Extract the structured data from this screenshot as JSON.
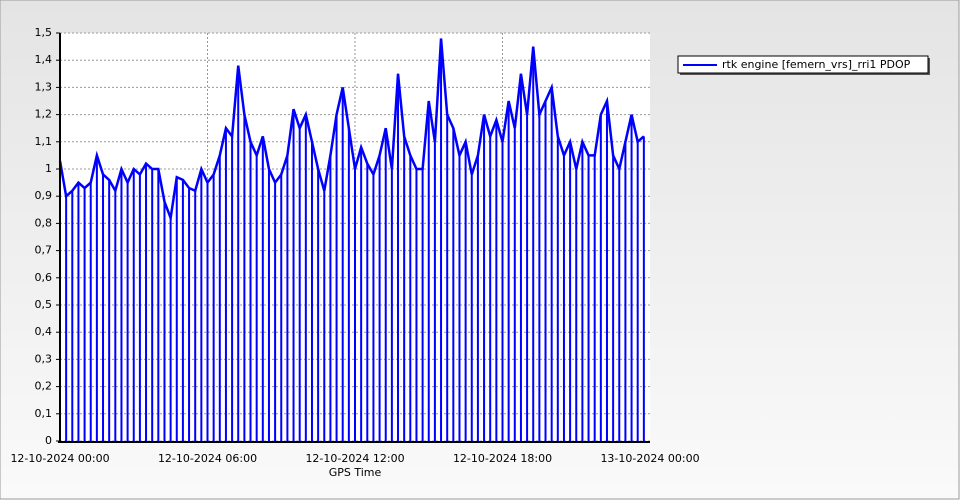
{
  "chart_data": {
    "type": "line",
    "x_label": "GPS Time",
    "grid": true,
    "legend": "upper right",
    "xlim": [
      "12-10-2024 00:00",
      "13-10-2024 00:00"
    ],
    "xticks": [
      "12-10-2024 00:00",
      "12-10-2024 06:00",
      "12-10-2024 12:00",
      "12-10-2024 18:00",
      "13-10-2024 00:00"
    ],
    "ylim": [
      0,
      1.5
    ],
    "yticks": [
      0,
      {
        "value": 0.1,
        "label": "0,1"
      },
      {
        "value": 0.2,
        "label": "0,2"
      },
      {
        "value": 0.3,
        "label": "0,3"
      },
      {
        "value": 0.4,
        "label": "0,4"
      },
      {
        "value": 0.5,
        "label": "0,5"
      },
      {
        "value": 0.6,
        "label": "0,6"
      },
      {
        "value": 0.7,
        "label": "0,7"
      },
      {
        "value": 0.8,
        "label": "0,8"
      },
      {
        "value": 0.9,
        "label": "0,9"
      },
      1,
      {
        "value": 1.1,
        "label": "1,1"
      },
      {
        "value": 1.2,
        "label": "1,2"
      },
      {
        "value": 1.3,
        "label": "1,3"
      },
      {
        "value": 1.4,
        "label": "1,4"
      },
      {
        "value": 1.5,
        "label": "1,5"
      }
    ],
    "x": [
      "12-10-2024 00:00",
      "12-10-2024 00:15",
      "12-10-2024 00:30",
      "12-10-2024 00:45",
      "12-10-2024 01:00",
      "12-10-2024 01:15",
      "12-10-2024 01:30",
      "12-10-2024 01:45",
      "12-10-2024 02:00",
      "12-10-2024 02:15",
      "12-10-2024 02:30",
      "12-10-2024 02:45",
      "12-10-2024 03:00",
      "12-10-2024 03:15",
      "12-10-2024 03:30",
      "12-10-2024 03:45",
      "12-10-2024 04:00",
      "12-10-2024 04:15",
      "12-10-2024 04:30",
      "12-10-2024 04:45",
      "12-10-2024 05:00",
      "12-10-2024 05:15",
      "12-10-2024 05:30",
      "12-10-2024 05:45",
      "12-10-2024 06:00",
      "12-10-2024 06:15",
      "12-10-2024 06:30",
      "12-10-2024 06:45",
      "12-10-2024 07:00",
      "12-10-2024 07:15",
      "12-10-2024 07:30",
      "12-10-2024 07:45",
      "12-10-2024 08:00",
      "12-10-2024 08:15",
      "12-10-2024 08:30",
      "12-10-2024 08:45",
      "12-10-2024 09:00",
      "12-10-2024 09:15",
      "12-10-2024 09:30",
      "12-10-2024 09:45",
      "12-10-2024 10:00",
      "12-10-2024 10:15",
      "12-10-2024 10:30",
      "12-10-2024 10:45",
      "12-10-2024 11:00",
      "12-10-2024 11:15",
      "12-10-2024 11:30",
      "12-10-2024 11:45",
      "12-10-2024 12:00",
      "12-10-2024 12:15",
      "12-10-2024 12:30",
      "12-10-2024 12:45",
      "12-10-2024 13:00",
      "12-10-2024 13:15",
      "12-10-2024 13:30",
      "12-10-2024 13:45",
      "12-10-2024 14:00",
      "12-10-2024 14:15",
      "12-10-2024 14:30",
      "12-10-2024 14:45",
      "12-10-2024 15:00",
      "12-10-2024 15:15",
      "12-10-2024 15:30",
      "12-10-2024 15:45",
      "12-10-2024 16:00",
      "12-10-2024 16:15",
      "12-10-2024 16:30",
      "12-10-2024 16:45",
      "12-10-2024 17:00",
      "12-10-2024 17:15",
      "12-10-2024 17:30",
      "12-10-2024 17:45",
      "12-10-2024 18:00",
      "12-10-2024 18:15",
      "12-10-2024 18:30",
      "12-10-2024 18:45",
      "12-10-2024 19:00",
      "12-10-2024 19:15",
      "12-10-2024 19:30",
      "12-10-2024 19:45",
      "12-10-2024 20:00",
      "12-10-2024 20:15",
      "12-10-2024 20:30",
      "12-10-2024 20:45",
      "12-10-2024 21:00",
      "12-10-2024 21:15",
      "12-10-2024 21:30",
      "12-10-2024 21:45",
      "12-10-2024 22:00",
      "12-10-2024 22:15",
      "12-10-2024 22:30",
      "12-10-2024 22:45",
      "12-10-2024 23:00",
      "12-10-2024 23:15",
      "12-10-2024 23:30",
      "12-10-2024 23:45"
    ],
    "series": [
      {
        "name": "rtk engine [femern_vrs]_rri1 PDOP",
        "color": "#0000ff",
        "values": [
          1.03,
          0.9,
          0.92,
          0.95,
          0.93,
          0.95,
          1.05,
          0.98,
          0.96,
          0.92,
          1.0,
          0.95,
          1.0,
          0.98,
          1.02,
          1.0,
          1.0,
          0.88,
          0.82,
          0.97,
          0.96,
          0.93,
          0.92,
          1.0,
          0.95,
          0.98,
          1.05,
          1.15,
          1.12,
          1.38,
          1.2,
          1.1,
          1.05,
          1.12,
          1.0,
          0.95,
          0.98,
          1.05,
          1.22,
          1.15,
          1.2,
          1.1,
          1.0,
          0.92,
          1.05,
          1.2,
          1.3,
          1.15,
          1.0,
          1.08,
          1.02,
          0.98,
          1.05,
          1.15,
          1.0,
          1.35,
          1.12,
          1.05,
          1.0,
          1.0,
          1.25,
          1.1,
          1.48,
          1.2,
          1.15,
          1.05,
          1.1,
          0.98,
          1.05,
          1.2,
          1.12,
          1.18,
          1.1,
          1.25,
          1.15,
          1.35,
          1.2,
          1.45,
          1.2,
          1.25,
          1.3,
          1.12,
          1.05,
          1.1,
          1.0,
          1.1,
          1.05,
          1.05,
          1.2,
          1.25,
          1.05,
          1.0,
          1.1,
          1.2,
          1.1,
          1.12
        ]
      }
    ]
  }
}
